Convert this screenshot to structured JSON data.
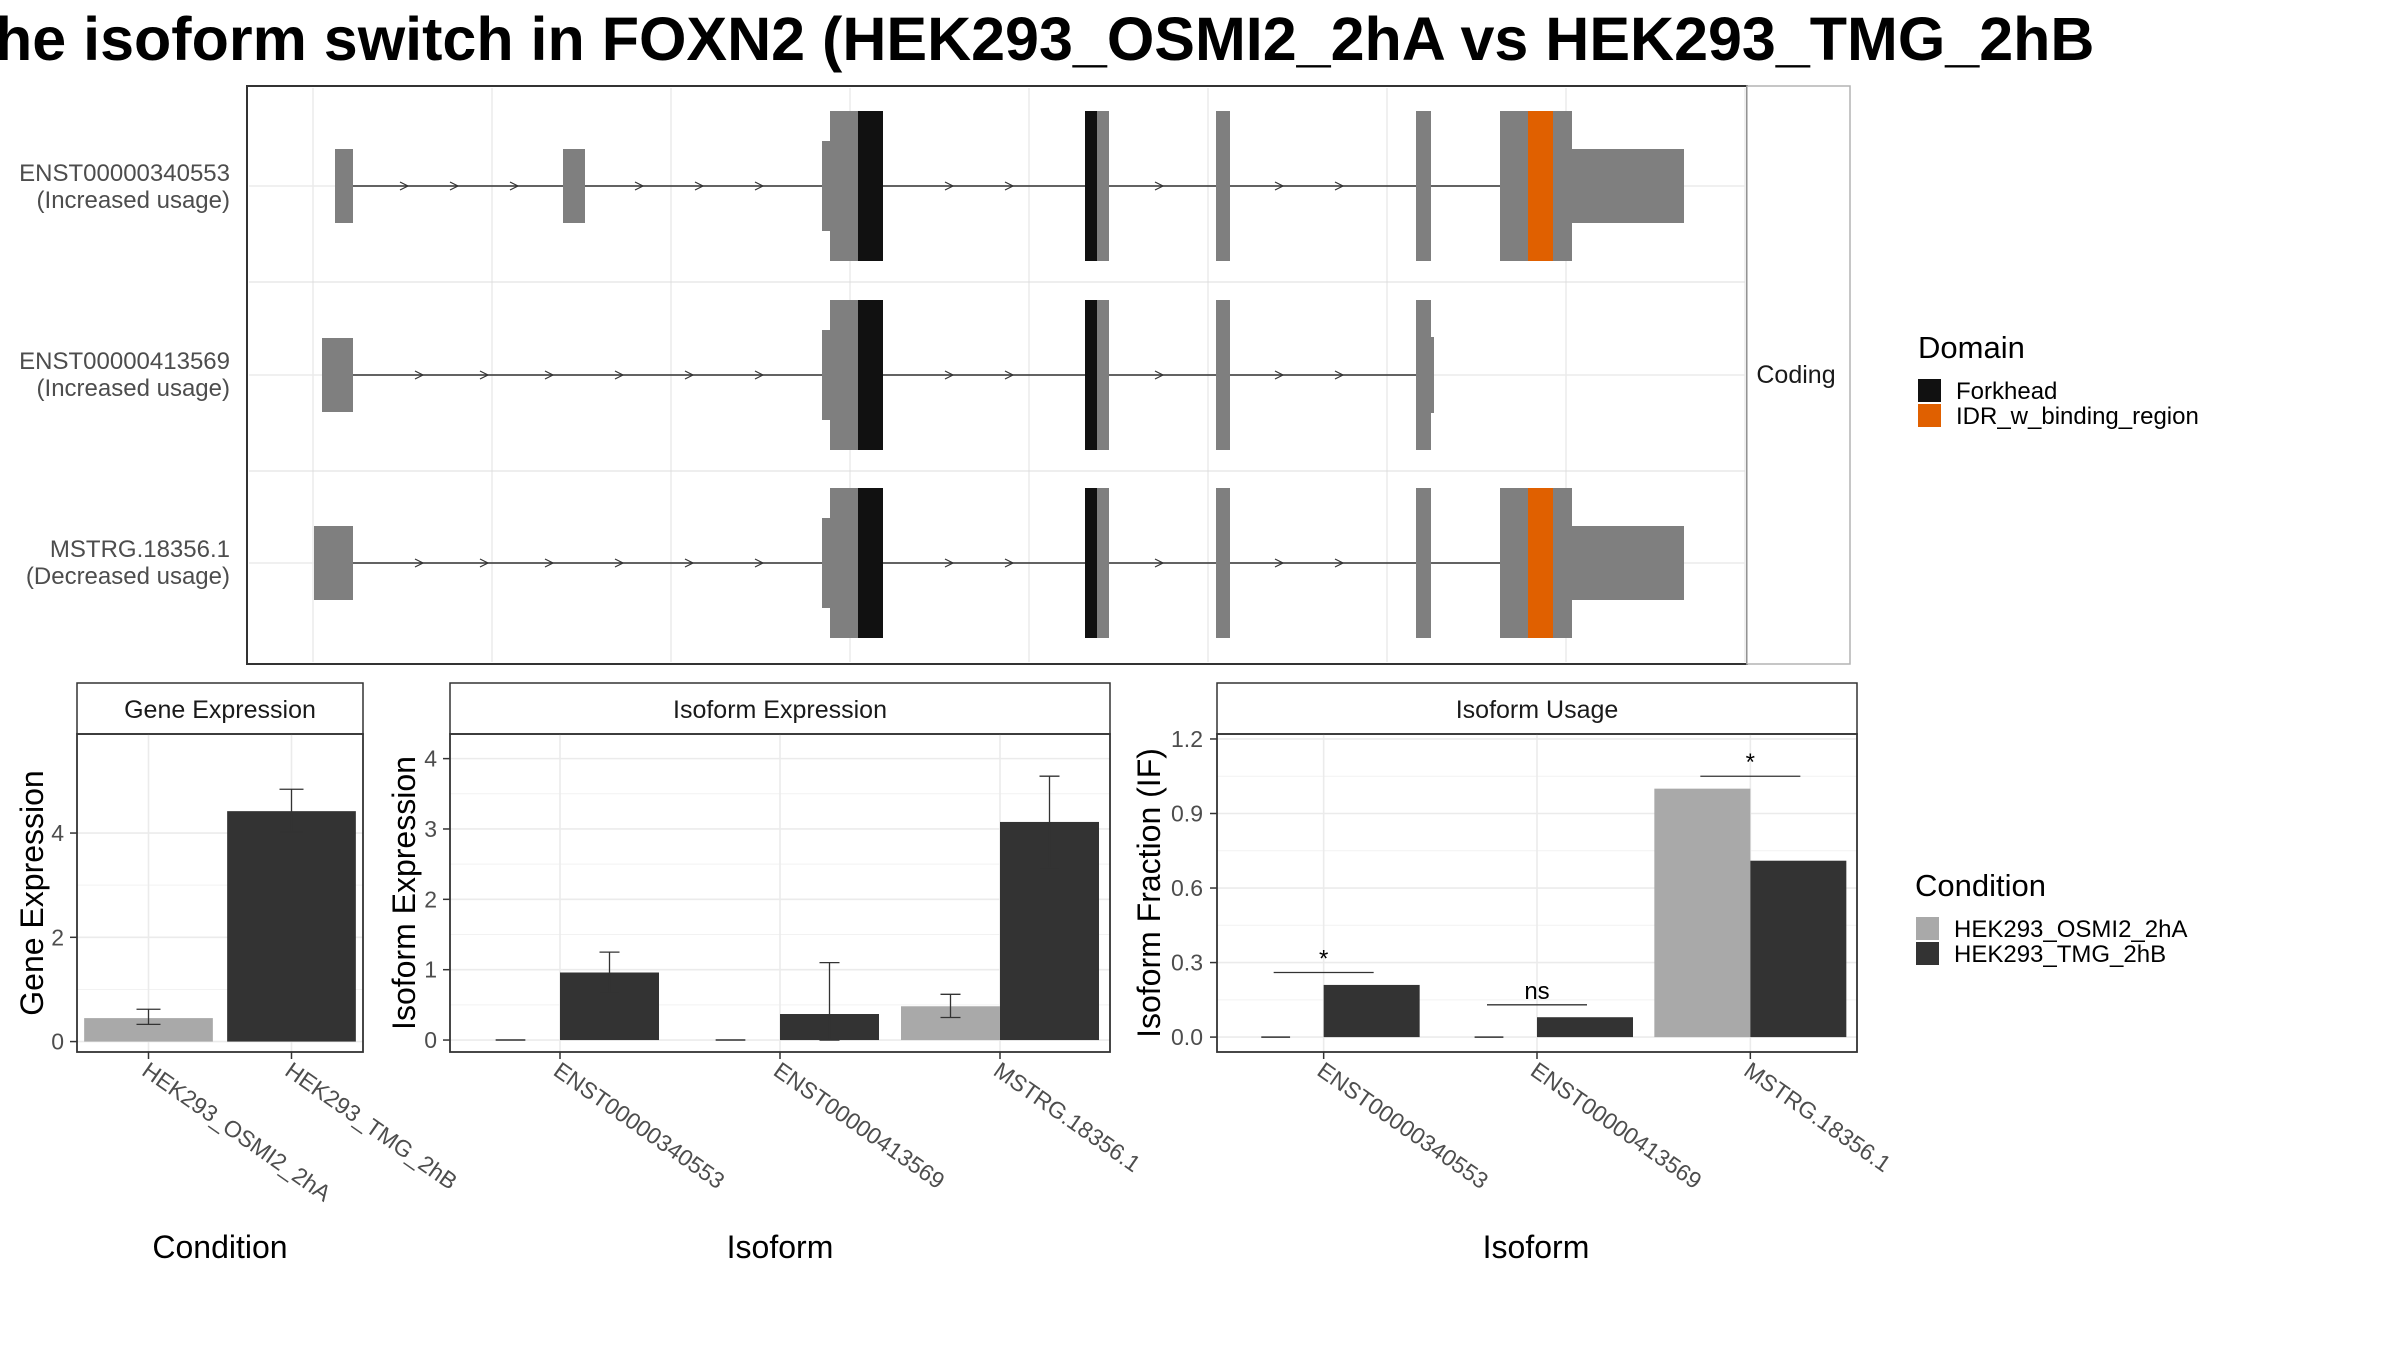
{
  "title": "he isoform switch in FOXN2 (HEK293_OSMI2_2hA vs HEK293_TMG_2hB",
  "colors": {
    "exon": "#7f7f7f",
    "forkhead": "#111111",
    "idr": "#e06000",
    "cond_a": "#a9a9a9",
    "cond_b": "#333333",
    "grid": "#ebebeb",
    "strip_bg": "#ffffff"
  },
  "structure_panel": {
    "strip_label": "Coding",
    "isoforms": [
      {
        "id": "ENST00000340553",
        "usage": "(Increased usage)"
      },
      {
        "id": "ENST00000413569",
        "usage": "(Increased usage)"
      },
      {
        "id": "MSTRG.18356.1",
        "usage": "(Decreased usage)"
      }
    ]
  },
  "legend_domain": {
    "title": "Domain",
    "items": [
      {
        "label": "Forkhead",
        "color": "#111111"
      },
      {
        "label": "IDR_w_binding_region",
        "color": "#e06000"
      }
    ]
  },
  "legend_condition": {
    "title": "Condition",
    "items": [
      {
        "label": "HEK293_OSMI2_2hA",
        "color": "#a9a9a9"
      },
      {
        "label": "HEK293_TMG_2hB",
        "color": "#333333"
      }
    ]
  },
  "chart_data": [
    {
      "type": "bar",
      "title": "Gene Expression",
      "xlabel": "Condition",
      "ylabel": "Gene Expression",
      "categories": [
        "HEK293_OSMI2_2hA",
        "HEK293_TMG_2hB"
      ],
      "values": [
        0.45,
        4.42
      ],
      "errors": [
        [
          0.33,
          0.62
        ],
        [
          4.02,
          4.84
        ]
      ],
      "ylim": [
        -0.2,
        5.9
      ],
      "yticks": [
        0,
        2,
        4
      ]
    },
    {
      "type": "bar",
      "title": "Isoform Expression",
      "xlabel": "Isoform",
      "ylabel": "Isoform Expression",
      "categories": [
        "ENST00000340553",
        "ENST00000413569",
        "MSTRG.18356.1"
      ],
      "series": [
        {
          "name": "HEK293_OSMI2_2hA",
          "values": [
            0.0,
            0.0,
            0.48
          ],
          "errors": [
            [
              0.0,
              0.0
            ],
            [
              0.0,
              0.0
            ],
            [
              0.32,
              0.65
            ]
          ]
        },
        {
          "name": "HEK293_TMG_2hB",
          "values": [
            0.96,
            0.37,
            3.1
          ],
          "errors": [
            [
              0.67,
              1.25
            ],
            [
              0.0,
              1.1
            ],
            [
              2.45,
              3.75
            ]
          ]
        }
      ],
      "ylim": [
        -0.17,
        4.35
      ],
      "yticks": [
        0,
        1,
        2,
        3,
        4
      ]
    },
    {
      "type": "bar",
      "title": "Isoform Usage",
      "xlabel": "Isoform",
      "ylabel": "Isoform Fraction (IF)",
      "categories": [
        "ENST00000340553",
        "ENST00000413569",
        "MSTRG.18356.1"
      ],
      "series": [
        {
          "name": "HEK293_OSMI2_2hA",
          "values": [
            0.0,
            0.0,
            1.0
          ]
        },
        {
          "name": "HEK293_TMG_2hB",
          "values": [
            0.21,
            0.08,
            0.71
          ]
        }
      ],
      "significance": [
        "*",
        "ns",
        "*"
      ],
      "ylim": [
        -0.06,
        1.22
      ],
      "yticks": [
        0.0,
        0.3,
        0.6,
        0.9,
        1.2
      ],
      "ytick_labels": [
        "0.0",
        "0.3",
        "0.6",
        "0.9",
        "1.2"
      ]
    }
  ]
}
